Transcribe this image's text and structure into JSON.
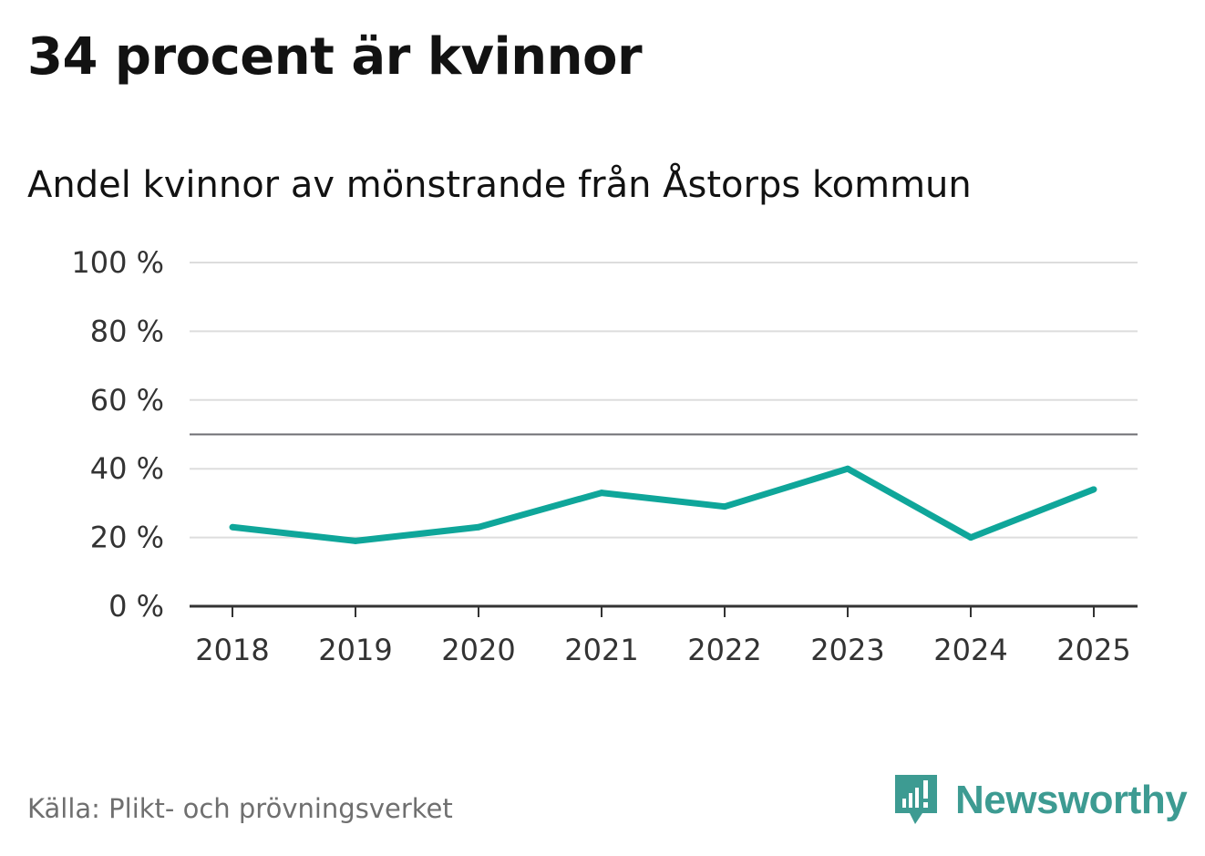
{
  "header": {
    "title": "34 procent är kvinnor",
    "subtitle": "Andel kvinnor av mönstrande från Åstorps kommun"
  },
  "footer": {
    "source": "Källa: Plikt- och prövningsverket",
    "brand": "Newsworthy",
    "brand_icon": "newsworthy-logo-icon"
  },
  "colors": {
    "line": "#0fa69a",
    "grid": "#dddddd",
    "reference_line": "#6e6e73",
    "axis": "#333333",
    "brand": "#3d9b92"
  },
  "chart_data": {
    "type": "line",
    "title": "Andel kvinnor av mönstrande från Åstorps kommun",
    "x": [
      2018,
      2019,
      2020,
      2021,
      2022,
      2023,
      2024,
      2025
    ],
    "x_tick_labels": [
      "2018",
      "2019",
      "2020",
      "2021",
      "2022",
      "2023",
      "2024",
      "2025"
    ],
    "series": [
      {
        "values": [
          23,
          19,
          23,
          33,
          29,
          40,
          20,
          34
        ]
      }
    ],
    "ylim": [
      0,
      100
    ],
    "y_ticks": [
      0,
      20,
      40,
      60,
      80,
      100
    ],
    "y_tick_labels": [
      "0 %",
      "20 %",
      "40 %",
      "60 %",
      "80 %",
      "100 %"
    ],
    "reference_line": 50,
    "grid": true,
    "legend": false
  }
}
